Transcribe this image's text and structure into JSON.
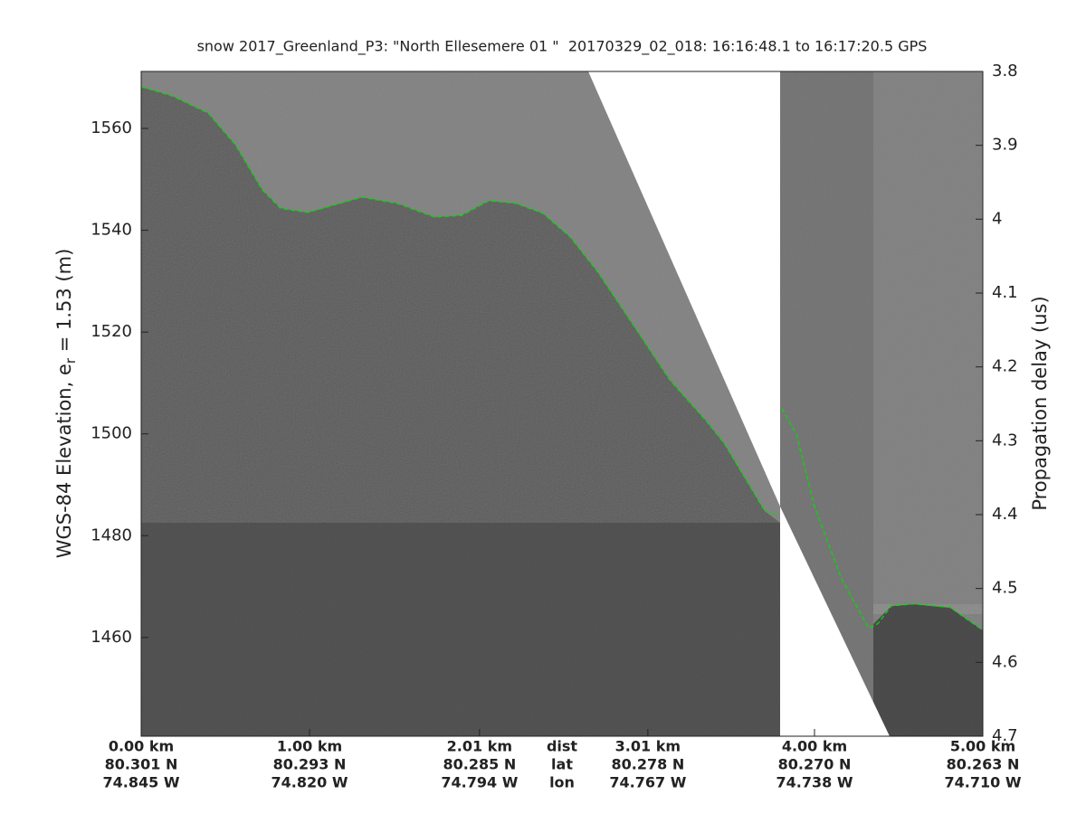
{
  "chart_data": {
    "type": "echogram",
    "title": "snow 2017_Greenland_P3: \"North Ellesemere 01 \"  20170329_02_018: 16:16:48.1 to 16:17:20.5 GPS",
    "ylabel": "WGS-84 Elevation, e",
    "ylabel_sub": "r",
    "ylabel_end": " = 1.53 (m)",
    "y2label": "Propagation delay (us)",
    "xlim": [
      0,
      5.0
    ],
    "xticks": [
      {
        "value": 0,
        "label": "0.00 km"
      },
      {
        "value": 1.0,
        "label": "1.00 km"
      },
      {
        "value": 2.01,
        "label": "2.01 km"
      },
      {
        "value": 3.01,
        "label": "3.01 km"
      },
      {
        "value": 4.0,
        "label": "4.00 km"
      },
      {
        "value": 5.0,
        "label": "5.00 km"
      }
    ],
    "lat_labels": [
      "80.301 N",
      "80.293 N",
      "80.285 N",
      "80.278 N",
      "80.270 N",
      "80.263 N"
    ],
    "lon_labels": [
      "74.845 W",
      "74.820 W",
      "74.794 W",
      "74.767 W",
      "74.738 W",
      "74.710 W"
    ],
    "row_labels": [
      "dist",
      "lat",
      "lon"
    ],
    "ylim": [
      1440.6,
      1571.2
    ],
    "yticks": [
      1460,
      1480,
      1500,
      1520,
      1540,
      1560
    ],
    "y2lim": [
      3.8,
      4.7
    ],
    "y2_reversed": true,
    "y2ticks": [
      3.8,
      3.9,
      4,
      4.1,
      4.2,
      4.3,
      4.4,
      4.5,
      4.6,
      4.7
    ],
    "color": "#00dd00",
    "x": [
      0,
      0.183,
      0.398,
      0.559,
      0.72,
      0.828,
      0.989,
      1.312,
      1.527,
      1.742,
      1.903,
      2.065,
      2.226,
      2.387,
      2.548,
      2.71,
      2.925,
      3.14,
      3.355,
      3.462,
      3.624,
      3.704,
      3.785,
      null,
      3.806,
      3.892,
      4.0,
      4.161,
      4.323,
      4.376,
      4.457,
      4.591,
      4.806,
      5.0
    ],
    "values": [
      1568.2,
      1566.4,
      1563.0,
      1556.8,
      1547.9,
      1544.3,
      1543.5,
      1546.5,
      1545.2,
      1542.6,
      1542.9,
      1545.8,
      1545.3,
      1543.3,
      1538.7,
      1531.9,
      1521.3,
      1510.6,
      1502.6,
      1498.2,
      1489.3,
      1484.9,
      1484.0,
      null,
      1505.0,
      1500.0,
      1485.8,
      1471.5,
      1461.8,
      1462.7,
      1466.2,
      1466.6,
      1465.9,
      1461.4
    ]
  }
}
